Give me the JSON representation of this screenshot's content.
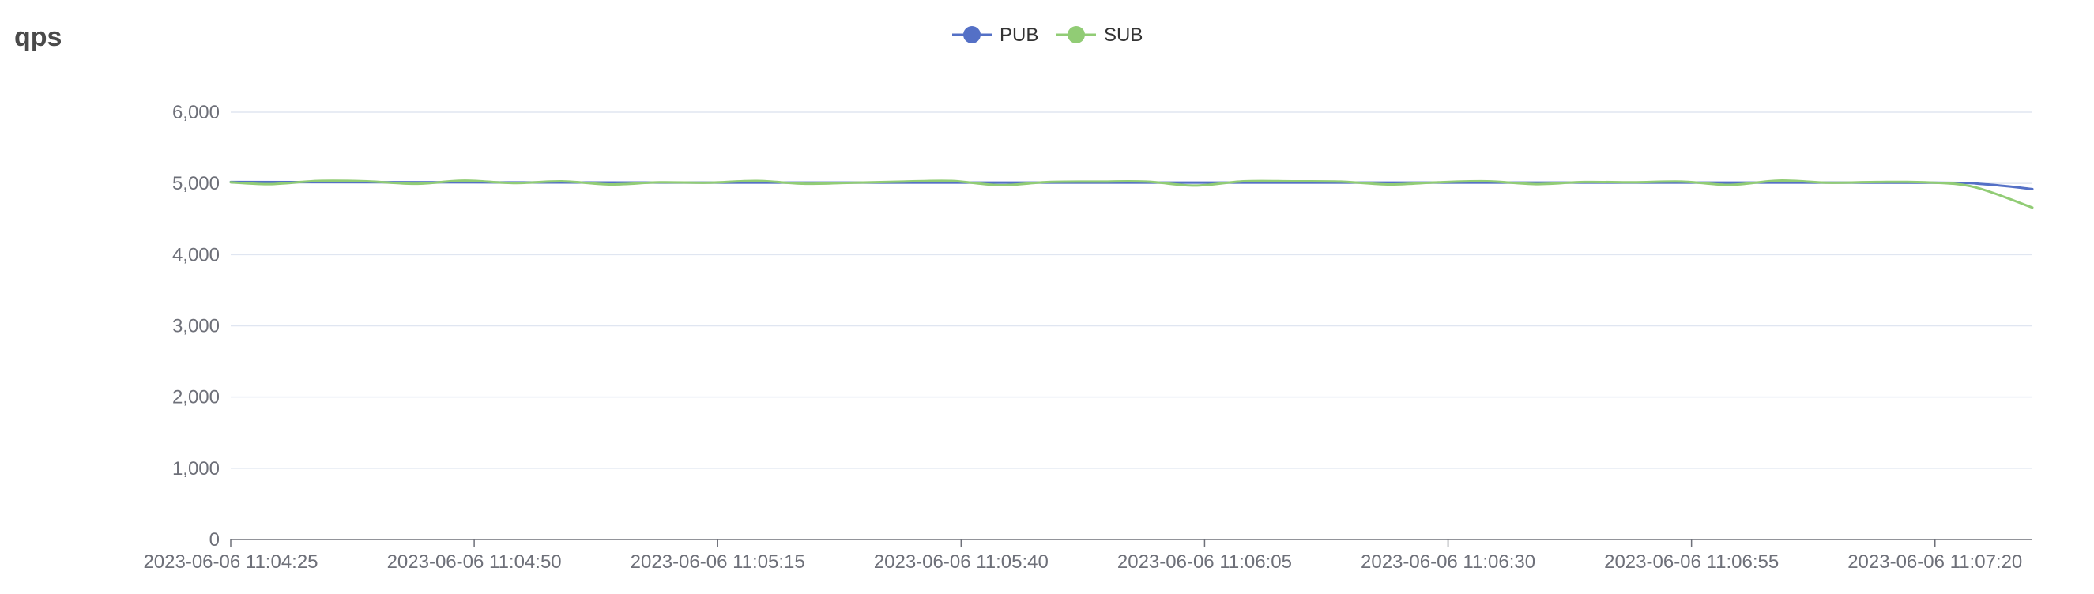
{
  "chart_data": {
    "type": "line",
    "title": "qps",
    "xlabel": "",
    "ylabel": "",
    "ylim": [
      0,
      6000
    ],
    "y_ticks": [
      0,
      1000,
      2000,
      3000,
      4000,
      5000,
      6000
    ],
    "y_tick_labels": [
      "0",
      "1,000",
      "2,000",
      "3,000",
      "4,000",
      "5,000",
      "6,000"
    ],
    "x_range": [
      "2023-06-06 11:04:25",
      "2023-06-06 11:07:30"
    ],
    "x_tick_labels": [
      "2023-06-06 11:04:25",
      "2023-06-06 11:04:50",
      "2023-06-06 11:05:15",
      "2023-06-06 11:05:40",
      "2023-06-06 11:06:05",
      "2023-06-06 11:06:30",
      "2023-06-06 11:06:55",
      "2023-06-06 11:07:20"
    ],
    "grid": true,
    "smooth": true,
    "legend_position": "top-center",
    "series": [
      {
        "name": "PUB",
        "color": "#5470c6",
        "points": [
          [
            "2023-06-06 11:04:25",
            5020
          ],
          [
            "2023-06-06 11:04:50",
            5015
          ],
          [
            "2023-06-06 11:05:15",
            5012
          ],
          [
            "2023-06-06 11:05:40",
            5012
          ],
          [
            "2023-06-06 11:06:05",
            5012
          ],
          [
            "2023-06-06 11:06:30",
            5012
          ],
          [
            "2023-06-06 11:06:55",
            5012
          ],
          [
            "2023-06-06 11:07:20",
            5010
          ],
          [
            "2023-06-06 11:07:25",
            4990
          ],
          [
            "2023-06-06 11:07:30",
            4920
          ]
        ]
      },
      {
        "name": "SUB",
        "color": "#91cc75",
        "points": [
          [
            "2023-06-06 11:04:25",
            5015
          ],
          [
            "2023-06-06 11:04:29",
            4990
          ],
          [
            "2023-06-06 11:04:34",
            5035
          ],
          [
            "2023-06-06 11:04:39",
            5030
          ],
          [
            "2023-06-06 11:04:44",
            4995
          ],
          [
            "2023-06-06 11:04:49",
            5040
          ],
          [
            "2023-06-06 11:04:54",
            5005
          ],
          [
            "2023-06-06 11:04:59",
            5030
          ],
          [
            "2023-06-06 11:05:04",
            4985
          ],
          [
            "2023-06-06 11:05:09",
            5015
          ],
          [
            "2023-06-06 11:05:14",
            5010
          ],
          [
            "2023-06-06 11:05:19",
            5035
          ],
          [
            "2023-06-06 11:05:24",
            4995
          ],
          [
            "2023-06-06 11:05:29",
            5010
          ],
          [
            "2023-06-06 11:05:34",
            5025
          ],
          [
            "2023-06-06 11:05:39",
            5035
          ],
          [
            "2023-06-06 11:05:44",
            4975
          ],
          [
            "2023-06-06 11:05:49",
            5020
          ],
          [
            "2023-06-06 11:05:54",
            5025
          ],
          [
            "2023-06-06 11:05:59",
            5025
          ],
          [
            "2023-06-06 11:06:04",
            4970
          ],
          [
            "2023-06-06 11:06:09",
            5030
          ],
          [
            "2023-06-06 11:06:14",
            5030
          ],
          [
            "2023-06-06 11:06:19",
            5025
          ],
          [
            "2023-06-06 11:06:24",
            4985
          ],
          [
            "2023-06-06 11:06:29",
            5015
          ],
          [
            "2023-06-06 11:06:34",
            5030
          ],
          [
            "2023-06-06 11:06:39",
            4990
          ],
          [
            "2023-06-06 11:06:44",
            5020
          ],
          [
            "2023-06-06 11:06:49",
            5015
          ],
          [
            "2023-06-06 11:06:54",
            5025
          ],
          [
            "2023-06-06 11:06:59",
            4980
          ],
          [
            "2023-06-06 11:07:04",
            5040
          ],
          [
            "2023-06-06 11:07:09",
            5010
          ],
          [
            "2023-06-06 11:07:14",
            5020
          ],
          [
            "2023-06-06 11:07:19",
            5015
          ],
          [
            "2023-06-06 11:07:24",
            4950
          ],
          [
            "2023-06-06 11:07:30",
            4660
          ]
        ]
      }
    ]
  }
}
